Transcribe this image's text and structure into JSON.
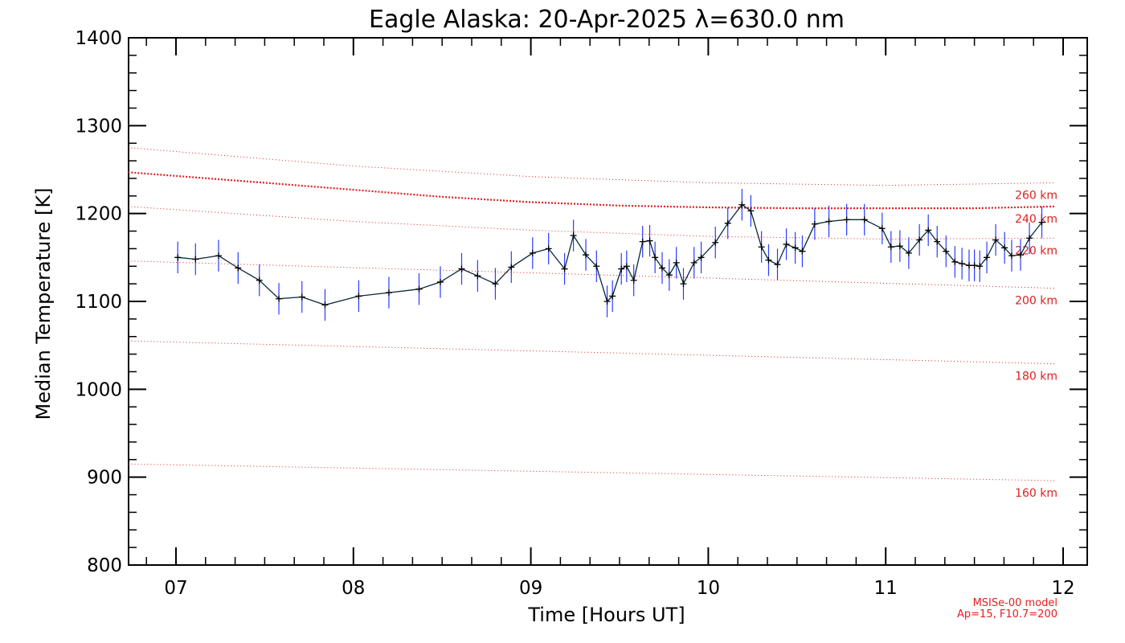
{
  "chart_data": {
    "type": "line",
    "title": "Eagle Alaska: 20-Apr-2025 λ=630.0 nm",
    "xlabel": "Time [Hours UT]",
    "ylabel": "Median Temperature [K]",
    "xlim": [
      6.73,
      12.13
    ],
    "ylim": [
      800,
      1400
    ],
    "x_ticks": [
      "07",
      "08",
      "09",
      "10",
      "11",
      "12"
    ],
    "y_ticks": [
      "800",
      "900",
      "1000",
      "1100",
      "1200",
      "1300",
      "1400"
    ],
    "grid": false,
    "colors": {
      "line": "#0a2a3a",
      "error_bars": "#2a3cff",
      "model": "#e02020"
    },
    "series": [
      {
        "x": [
          7.01,
          7.11,
          7.24,
          7.35,
          7.47,
          7.58,
          7.71,
          7.84,
          8.03,
          8.2,
          8.37,
          8.49,
          8.61,
          8.7,
          8.8,
          8.89,
          9.01,
          9.1,
          9.19,
          9.24,
          9.31,
          9.37,
          9.43,
          9.46,
          9.51,
          9.54,
          9.58,
          9.63,
          9.67,
          9.7,
          9.74,
          9.78,
          9.82,
          9.86,
          9.92,
          9.96,
          10.04,
          10.11,
          10.19,
          10.24,
          10.3,
          10.34,
          10.39,
          10.44,
          10.49,
          10.53,
          10.6,
          10.68,
          10.78,
          10.88,
          10.98,
          11.03,
          11.08,
          11.13,
          11.19,
          11.24,
          11.29,
          11.34,
          11.39,
          11.43,
          11.47,
          11.5,
          11.53,
          11.57,
          11.62,
          11.67,
          11.71,
          11.76,
          11.81,
          11.88
        ],
        "y": [
          1150,
          1148,
          1152,
          1138,
          1124,
          1103,
          1105,
          1096,
          1106,
          1110,
          1114,
          1122,
          1137,
          1129,
          1120,
          1139,
          1155,
          1160,
          1137,
          1175,
          1153,
          1140,
          1100,
          1106,
          1137,
          1140,
          1124,
          1168,
          1169,
          1150,
          1138,
          1130,
          1144,
          1120,
          1144,
          1150,
          1167,
          1189,
          1210,
          1203,
          1162,
          1147,
          1142,
          1165,
          1161,
          1157,
          1188,
          1191,
          1193,
          1193,
          1183,
          1162,
          1163,
          1155,
          1170,
          1181,
          1168,
          1157,
          1145,
          1143,
          1141,
          1141,
          1140,
          1150,
          1170,
          1161,
          1152,
          1153,
          1172,
          1190
        ],
        "error": 18
      }
    ],
    "model_curves": [
      {
        "label": "160 km",
        "x": [
          6.73,
          11.95
        ],
        "y": [
          915,
          896
        ]
      },
      {
        "label": "180 km",
        "x": [
          6.73,
          11.95
        ],
        "y": [
          1055,
          1029
        ]
      },
      {
        "label": "200 km",
        "x": [
          6.73,
          11.95
        ],
        "y": [
          1146,
          1115
        ]
      },
      {
        "label": "220 km",
        "x": [
          6.73,
          8.0,
          9.0,
          10.0,
          11.0,
          11.95
        ],
        "y": [
          1208,
          1191,
          1181,
          1174,
          1171,
          1172
        ]
      },
      {
        "label": "240 km",
        "x": [
          6.73,
          7.5,
          8.0,
          8.5,
          9.0,
          9.5,
          10.0,
          10.5,
          11.0,
          11.5,
          11.95
        ],
        "y": [
          1247,
          1235,
          1227,
          1219,
          1213,
          1209,
          1207,
          1206,
          1206,
          1206,
          1208
        ]
      },
      {
        "label": "260 km",
        "x": [
          6.73,
          8.0,
          9.0,
          10.0,
          11.0,
          11.95
        ],
        "y": [
          1275,
          1254,
          1242,
          1235,
          1232,
          1235
        ]
      }
    ],
    "annotations": [
      "MSISe-00 model",
      "Ap=15, F10.7=200"
    ]
  }
}
